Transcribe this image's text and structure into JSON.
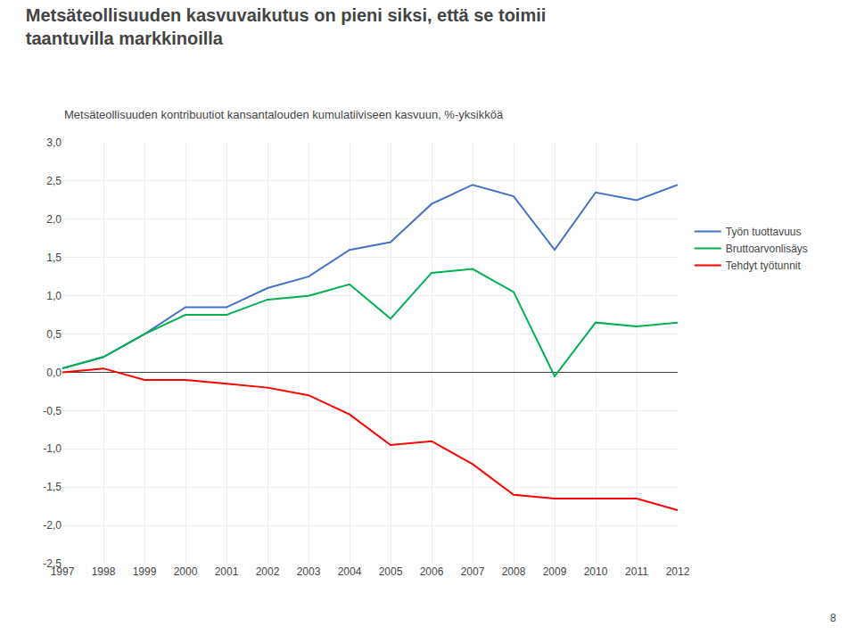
{
  "chart_data": {
    "type": "line",
    "title": "Metsäteollisuuden kasvuvaikutus on pieni siksi, että se toimii\ntaantuvilla markkinoilla",
    "subtitle": "Metsäteollisuuden kontribuutiot kansantalouden kumulatiiviseen kasvuun, %-yksikköä",
    "x": [
      1997,
      1998,
      1999,
      2000,
      2001,
      2002,
      2003,
      2004,
      2005,
      2006,
      2007,
      2008,
      2009,
      2010,
      2011,
      2012
    ],
    "series": [
      {
        "name": "Työn tuottavuus",
        "color": "#4472C4",
        "values": [
          0.05,
          0.2,
          0.5,
          0.85,
          0.85,
          1.1,
          1.25,
          1.6,
          1.7,
          2.2,
          2.45,
          2.3,
          1.6,
          2.35,
          2.25,
          2.45
        ]
      },
      {
        "name": "Bruttoarvonlisäys",
        "color": "#00B050",
        "values": [
          0.05,
          0.2,
          0.5,
          0.75,
          0.75,
          0.95,
          1.0,
          1.15,
          0.7,
          1.3,
          1.35,
          1.05,
          -0.05,
          0.65,
          0.6,
          0.65
        ]
      },
      {
        "name": "Tehdyt työtunnit",
        "color": "#FF0000",
        "values": [
          0.0,
          0.05,
          -0.1,
          -0.1,
          -0.15,
          -0.2,
          -0.3,
          -0.55,
          -0.95,
          -0.9,
          -1.2,
          -1.6,
          -1.65,
          -1.65,
          -1.65,
          -1.8
        ]
      }
    ],
    "xlim": [
      1997,
      2012
    ],
    "xticks": [
      1997,
      1998,
      1999,
      2000,
      2001,
      2002,
      2003,
      2004,
      2005,
      2006,
      2007,
      2008,
      2009,
      2010,
      2011,
      2012
    ],
    "ylim": [
      -2.5,
      3.0
    ],
    "yticks": [
      {
        "value": -2.5,
        "label": "-2,5"
      },
      {
        "value": -2.0,
        "label": "-2,0"
      },
      {
        "value": -1.5,
        "label": "-1,5"
      },
      {
        "value": -1.0,
        "label": "-1,0"
      },
      {
        "value": -0.5,
        "label": "-0,5"
      },
      {
        "value": 0.0,
        "label": "0,0"
      },
      {
        "value": 0.5,
        "label": "0,5"
      },
      {
        "value": 1.0,
        "label": "1,0"
      },
      {
        "value": 1.5,
        "label": "1,5"
      },
      {
        "value": 2.0,
        "label": "2,0"
      },
      {
        "value": 2.5,
        "label": "2,5"
      },
      {
        "value": 3.0,
        "label": "3,0"
      }
    ],
    "grid": true,
    "legend": "right",
    "annotations": [
      "8"
    ]
  }
}
